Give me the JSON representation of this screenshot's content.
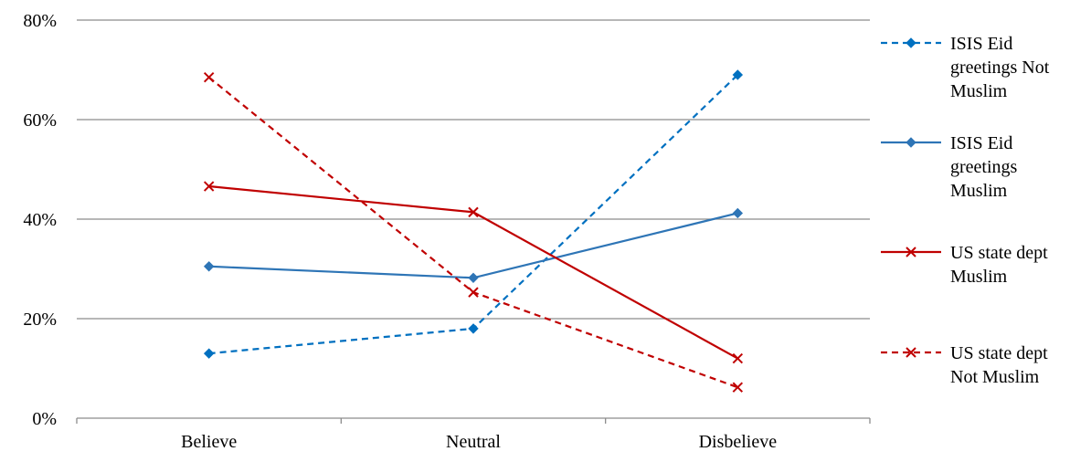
{
  "chart_data": {
    "type": "line",
    "categories": [
      "Believe",
      "Neutral",
      "Disbelieve"
    ],
    "ylim": [
      0,
      80
    ],
    "yticks": [
      "0%",
      "20%",
      "40%",
      "60%",
      "80%"
    ],
    "y_unit": "%",
    "grid": true,
    "legend_position": "right",
    "series": [
      {
        "name": "ISIS Eid greetings Not Muslim",
        "legend_lines": [
          "ISIS Eid",
          "greetings Not",
          "Muslim"
        ],
        "values": [
          13,
          18,
          69
        ],
        "color": "#0070C0",
        "dashed": true,
        "marker": "diamond"
      },
      {
        "name": "ISIS Eid greetings Muslim",
        "legend_lines": [
          "ISIS Eid",
          "greetings",
          "Muslim"
        ],
        "values": [
          30.5,
          28.2,
          41.2
        ],
        "color": "#2E75B6",
        "dashed": false,
        "marker": "diamond"
      },
      {
        "name": "US state dept Muslim",
        "legend_lines": [
          "US state dept",
          "Muslim"
        ],
        "values": [
          46.6,
          41.4,
          12
        ],
        "color": "#C00000",
        "dashed": false,
        "marker": "x"
      },
      {
        "name": "US state dept Not Muslim",
        "legend_lines": [
          "US state dept",
          "Not Muslim"
        ],
        "values": [
          68.5,
          25.3,
          6.2
        ],
        "color": "#C00000",
        "dashed": true,
        "marker": "x"
      }
    ]
  }
}
